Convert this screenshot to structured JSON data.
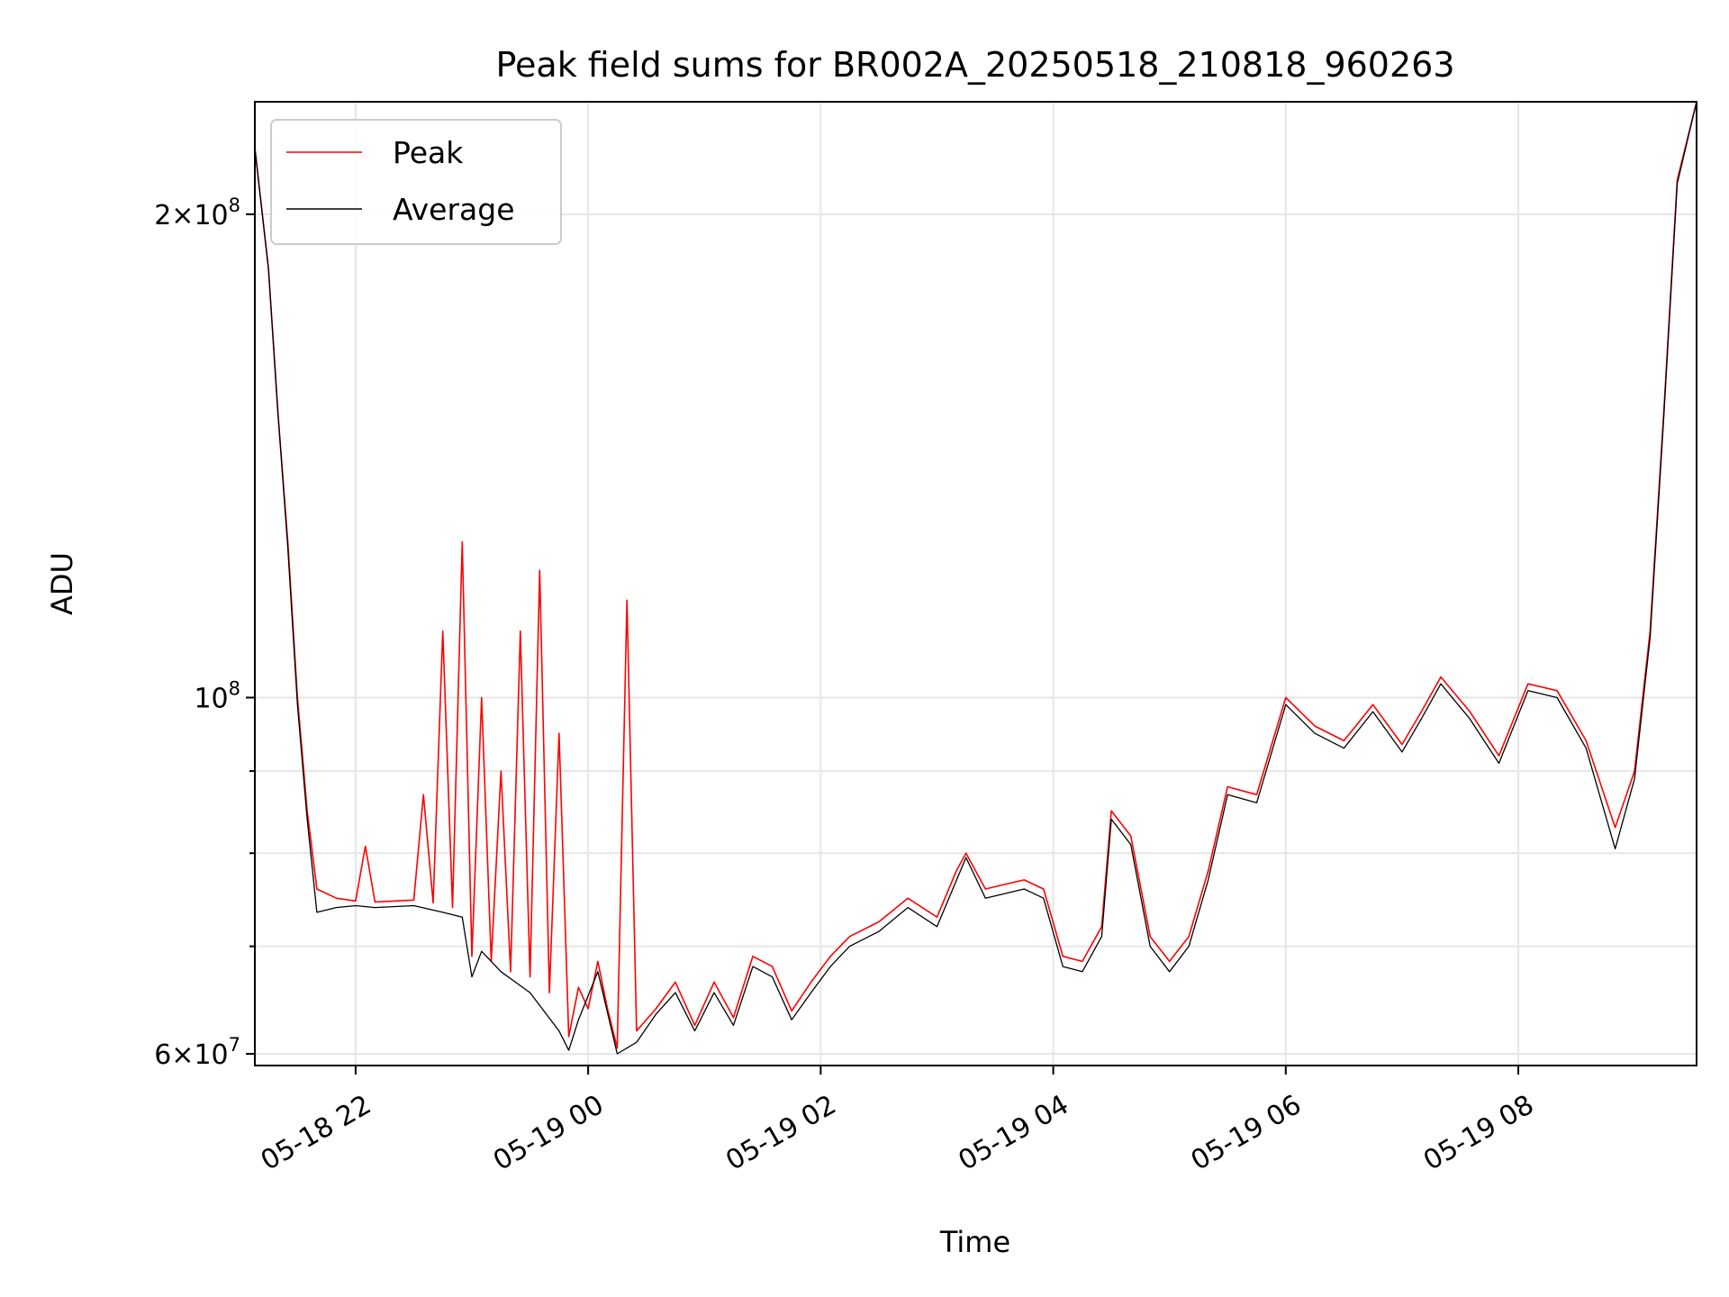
{
  "chart_data": {
    "type": "line",
    "title": "Peak field sums for BR002A_20250518_210818_960263",
    "xlabel": "Time",
    "ylabel": "ADU",
    "yscale": "log",
    "ylim": [
      59000000,
      235000000
    ],
    "xlim": [
      "2025-05-18 21:08",
      "2025-05-19 09:32"
    ],
    "grid": true,
    "legend_position": "top-left",
    "x_ticks": [
      {
        "t": "2025-05-18 22:00",
        "label": "05-18 22"
      },
      {
        "t": "2025-05-19 00:00",
        "label": "05-19 00"
      },
      {
        "t": "2025-05-19 02:00",
        "label": "05-19 02"
      },
      {
        "t": "2025-05-19 04:00",
        "label": "05-19 04"
      },
      {
        "t": "2025-05-19 06:00",
        "label": "05-19 06"
      },
      {
        "t": "2025-05-19 08:00",
        "label": "05-19 08"
      }
    ],
    "y_ticks": [
      {
        "value": 60000000,
        "base": "6",
        "exp": "7",
        "labeled": true
      },
      {
        "value": 70000000,
        "labeled": false
      },
      {
        "value": 80000000,
        "labeled": false
      },
      {
        "value": 90000000,
        "labeled": false
      },
      {
        "value": 100000000,
        "base": "",
        "exp": "8",
        "labeled": true
      },
      {
        "value": 200000000,
        "base": "2",
        "exp": "8",
        "labeled": true
      }
    ],
    "series": [
      {
        "name": "Peak",
        "color": "#ff0000",
        "points": [
          [
            "2025-05-18 21:08",
            220000000
          ],
          [
            "2025-05-18 21:15",
            185000000
          ],
          [
            "2025-05-18 21:20",
            150000000
          ],
          [
            "2025-05-18 21:25",
            125000000
          ],
          [
            "2025-05-18 21:30",
            100000000
          ],
          [
            "2025-05-18 21:35",
            85000000
          ],
          [
            "2025-05-18 21:40",
            76000000
          ],
          [
            "2025-05-18 21:50",
            75000000
          ],
          [
            "2025-05-18 22:00",
            74700000
          ],
          [
            "2025-05-18 22:05",
            80800000
          ],
          [
            "2025-05-18 22:10",
            74600000
          ],
          [
            "2025-05-18 22:30",
            74800000
          ],
          [
            "2025-05-18 22:35",
            87000000
          ],
          [
            "2025-05-18 22:40",
            74500000
          ],
          [
            "2025-05-18 22:45",
            110000000
          ],
          [
            "2025-05-18 22:50",
            74000000
          ],
          [
            "2025-05-18 22:55",
            125000000
          ],
          [
            "2025-05-18 23:00",
            69000000
          ],
          [
            "2025-05-18 23:05",
            100000000
          ],
          [
            "2025-05-18 23:10",
            68500000
          ],
          [
            "2025-05-18 23:15",
            90000000
          ],
          [
            "2025-05-18 23:20",
            67500000
          ],
          [
            "2025-05-18 23:25",
            110000000
          ],
          [
            "2025-05-18 23:30",
            67000000
          ],
          [
            "2025-05-18 23:35",
            120000000
          ],
          [
            "2025-05-18 23:40",
            65500000
          ],
          [
            "2025-05-18 23:45",
            95000000
          ],
          [
            "2025-05-18 23:50",
            61500000
          ],
          [
            "2025-05-18 23:55",
            66000000
          ],
          [
            "2025-05-19 00:00",
            64000000
          ],
          [
            "2025-05-19 00:05",
            68500000
          ],
          [
            "2025-05-19 00:10",
            64000000
          ],
          [
            "2025-05-19 00:15",
            60500000
          ],
          [
            "2025-05-19 00:20",
            115000000
          ],
          [
            "2025-05-19 00:25",
            62000000
          ],
          [
            "2025-05-19 00:35",
            64000000
          ],
          [
            "2025-05-19 00:45",
            66500000
          ],
          [
            "2025-05-19 00:55",
            62500000
          ],
          [
            "2025-05-19 01:05",
            66500000
          ],
          [
            "2025-05-19 01:15",
            63200000
          ],
          [
            "2025-05-19 01:25",
            69000000
          ],
          [
            "2025-05-19 01:35",
            68000000
          ],
          [
            "2025-05-19 01:45",
            63800000
          ],
          [
            "2025-05-19 01:55",
            66500000
          ],
          [
            "2025-05-19 02:05",
            69000000
          ],
          [
            "2025-05-19 02:15",
            71000000
          ],
          [
            "2025-05-19 02:30",
            72500000
          ],
          [
            "2025-05-19 02:45",
            75000000
          ],
          [
            "2025-05-19 03:00",
            73000000
          ],
          [
            "2025-05-19 03:10",
            78000000
          ],
          [
            "2025-05-19 03:15",
            80000000
          ],
          [
            "2025-05-19 03:25",
            76000000
          ],
          [
            "2025-05-19 03:35",
            76500000
          ],
          [
            "2025-05-19 03:45",
            77000000
          ],
          [
            "2025-05-19 03:55",
            76000000
          ],
          [
            "2025-05-19 04:05",
            69000000
          ],
          [
            "2025-05-19 04:15",
            68500000
          ],
          [
            "2025-05-19 04:25",
            72000000
          ],
          [
            "2025-05-19 04:30",
            85000000
          ],
          [
            "2025-05-19 04:40",
            82000000
          ],
          [
            "2025-05-19 04:50",
            71000000
          ],
          [
            "2025-05-19 05:00",
            68500000
          ],
          [
            "2025-05-19 05:10",
            71000000
          ],
          [
            "2025-05-19 05:20",
            78000000
          ],
          [
            "2025-05-19 05:30",
            88000000
          ],
          [
            "2025-05-19 05:45",
            87000000
          ],
          [
            "2025-05-19 06:00",
            100000000
          ],
          [
            "2025-05-19 06:15",
            96000000
          ],
          [
            "2025-05-19 06:30",
            94000000
          ],
          [
            "2025-05-19 06:45",
            99000000
          ],
          [
            "2025-05-19 07:00",
            93500000
          ],
          [
            "2025-05-19 07:10",
            98000000
          ],
          [
            "2025-05-19 07:20",
            103000000
          ],
          [
            "2025-05-19 07:35",
            98000000
          ],
          [
            "2025-05-19 07:50",
            92000000
          ],
          [
            "2025-05-19 08:05",
            102000000
          ],
          [
            "2025-05-19 08:20",
            101000000
          ],
          [
            "2025-05-19 08:35",
            94000000
          ],
          [
            "2025-05-19 08:50",
            83000000
          ],
          [
            "2025-05-19 09:00",
            90000000
          ],
          [
            "2025-05-19 09:08",
            110000000
          ],
          [
            "2025-05-19 09:15",
            150000000
          ],
          [
            "2025-05-19 09:22",
            210000000
          ],
          [
            "2025-05-19 09:32",
            235000000
          ]
        ]
      },
      {
        "name": "Average",
        "color": "#000000",
        "points": [
          [
            "2025-05-18 21:08",
            220000000
          ],
          [
            "2025-05-18 21:15",
            185000000
          ],
          [
            "2025-05-18 21:20",
            150000000
          ],
          [
            "2025-05-18 21:25",
            124000000
          ],
          [
            "2025-05-18 21:30",
            99000000
          ],
          [
            "2025-05-18 21:35",
            84000000
          ],
          [
            "2025-05-18 21:40",
            73500000
          ],
          [
            "2025-05-18 21:50",
            74000000
          ],
          [
            "2025-05-18 22:00",
            74200000
          ],
          [
            "2025-05-18 22:10",
            74000000
          ],
          [
            "2025-05-18 22:30",
            74200000
          ],
          [
            "2025-05-18 22:45",
            73500000
          ],
          [
            "2025-05-18 22:55",
            73000000
          ],
          [
            "2025-05-18 23:00",
            67000000
          ],
          [
            "2025-05-18 23:05",
            69500000
          ],
          [
            "2025-05-18 23:15",
            67500000
          ],
          [
            "2025-05-18 23:30",
            65500000
          ],
          [
            "2025-05-18 23:45",
            62000000
          ],
          [
            "2025-05-18 23:50",
            60300000
          ],
          [
            "2025-05-18 23:55",
            63000000
          ],
          [
            "2025-05-19 00:05",
            67500000
          ],
          [
            "2025-05-19 00:15",
            60000000
          ],
          [
            "2025-05-19 00:25",
            61000000
          ],
          [
            "2025-05-19 00:35",
            63500000
          ],
          [
            "2025-05-19 00:45",
            65500000
          ],
          [
            "2025-05-19 00:55",
            62000000
          ],
          [
            "2025-05-19 01:05",
            65500000
          ],
          [
            "2025-05-19 01:15",
            62500000
          ],
          [
            "2025-05-19 01:25",
            68000000
          ],
          [
            "2025-05-19 01:35",
            67000000
          ],
          [
            "2025-05-19 01:45",
            63000000
          ],
          [
            "2025-05-19 01:55",
            65500000
          ],
          [
            "2025-05-19 02:05",
            68000000
          ],
          [
            "2025-05-19 02:15",
            70000000
          ],
          [
            "2025-05-19 02:30",
            71500000
          ],
          [
            "2025-05-19 02:45",
            74000000
          ],
          [
            "2025-05-19 03:00",
            72000000
          ],
          [
            "2025-05-19 03:15",
            79500000
          ],
          [
            "2025-05-19 03:25",
            75000000
          ],
          [
            "2025-05-19 03:35",
            75500000
          ],
          [
            "2025-05-19 03:45",
            76000000
          ],
          [
            "2025-05-19 03:55",
            75000000
          ],
          [
            "2025-05-19 04:05",
            68000000
          ],
          [
            "2025-05-19 04:15",
            67500000
          ],
          [
            "2025-05-19 04:25",
            71000000
          ],
          [
            "2025-05-19 04:30",
            84000000
          ],
          [
            "2025-05-19 04:40",
            81000000
          ],
          [
            "2025-05-19 04:50",
            70000000
          ],
          [
            "2025-05-19 05:00",
            67500000
          ],
          [
            "2025-05-19 05:10",
            70000000
          ],
          [
            "2025-05-19 05:20",
            77000000
          ],
          [
            "2025-05-19 05:30",
            87000000
          ],
          [
            "2025-05-19 05:45",
            86000000
          ],
          [
            "2025-05-19 06:00",
            99000000
          ],
          [
            "2025-05-19 06:15",
            95000000
          ],
          [
            "2025-05-19 06:30",
            93000000
          ],
          [
            "2025-05-19 06:45",
            98000000
          ],
          [
            "2025-05-19 07:00",
            92500000
          ],
          [
            "2025-05-19 07:10",
            97000000
          ],
          [
            "2025-05-19 07:20",
            102000000
          ],
          [
            "2025-05-19 07:35",
            97000000
          ],
          [
            "2025-05-19 07:50",
            91000000
          ],
          [
            "2025-05-19 08:05",
            101000000
          ],
          [
            "2025-05-19 08:20",
            100000000
          ],
          [
            "2025-05-19 08:35",
            93000000
          ],
          [
            "2025-05-19 08:50",
            80500000
          ],
          [
            "2025-05-19 09:00",
            89000000
          ],
          [
            "2025-05-19 09:08",
            109000000
          ],
          [
            "2025-05-19 09:15",
            149000000
          ],
          [
            "2025-05-19 09:22",
            209000000
          ],
          [
            "2025-05-19 09:32",
            235000000
          ]
        ]
      }
    ]
  }
}
